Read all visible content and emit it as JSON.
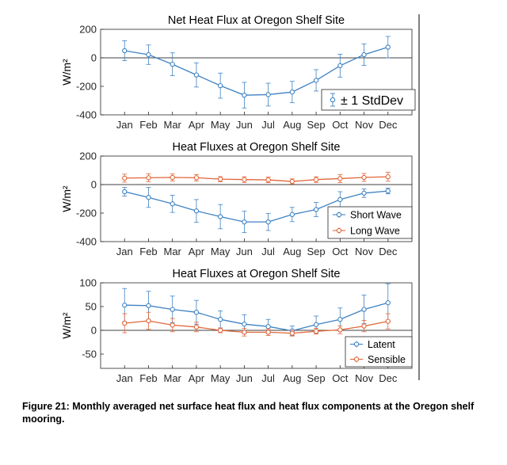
{
  "chart_data": [
    {
      "type": "line",
      "title": "Net Heat Flux at Oregon Shelf Site",
      "ylabel": "W/m²",
      "ylim": [
        -400,
        200
      ],
      "yticks": [
        200,
        0,
        -200,
        -400
      ],
      "categories": [
        "Jan",
        "Feb",
        "Mar",
        "Apr",
        "May",
        "Jun",
        "Jul",
        "Aug",
        "Sep",
        "Oct",
        "Nov",
        "Dec"
      ],
      "grid": false,
      "legend_position": "bottom-right",
      "series": [
        {
          "name": "± 1 StdDev",
          "color": "#3f82c3",
          "values": [
            50,
            22,
            -45,
            -120,
            -195,
            -262,
            -258,
            -240,
            -158,
            -55,
            22,
            75
          ],
          "errors": [
            70,
            68,
            80,
            85,
            88,
            90,
            80,
            75,
            75,
            80,
            75,
            75
          ]
        }
      ]
    },
    {
      "type": "line",
      "title": "Heat Fluxes at Oregon Shelf Site",
      "ylabel": "W/m²",
      "ylim": [
        -400,
        200
      ],
      "yticks": [
        200,
        0,
        -200,
        -400
      ],
      "categories": [
        "Jan",
        "Feb",
        "Mar",
        "Apr",
        "May",
        "Jun",
        "Jul",
        "Aug",
        "Sep",
        "Oct",
        "Nov",
        "Dec"
      ],
      "grid": false,
      "legend_position": "bottom-right",
      "series": [
        {
          "name": "Short Wave",
          "color": "#3f82c3",
          "values": [
            -50,
            -90,
            -135,
            -185,
            -225,
            -262,
            -262,
            -210,
            -175,
            -105,
            -60,
            -45
          ],
          "errors": [
            30,
            70,
            60,
            80,
            85,
            75,
            60,
            50,
            50,
            55,
            30,
            20
          ]
        },
        {
          "name": "Long Wave",
          "color": "#e0673a",
          "values": [
            45,
            48,
            50,
            48,
            38,
            35,
            33,
            22,
            35,
            42,
            50,
            55
          ],
          "errors": [
            28,
            28,
            25,
            22,
            18,
            20,
            20,
            18,
            20,
            28,
            28,
            32
          ]
        }
      ]
    },
    {
      "type": "line",
      "title": "Heat Fluxes at Oregon Shelf Site",
      "ylabel": "W/m²",
      "ylim": [
        -80,
        100
      ],
      "yticks": [
        100,
        50,
        0,
        -50
      ],
      "categories": [
        "Jan",
        "Feb",
        "Mar",
        "Apr",
        "May",
        "Jun",
        "Jul",
        "Aug",
        "Sep",
        "Oct",
        "Nov",
        "Dec"
      ],
      "grid": false,
      "legend_position": "bottom-right",
      "series": [
        {
          "name": "Latent",
          "color": "#3f82c3",
          "values": [
            53,
            52,
            44,
            38,
            23,
            13,
            8,
            -1,
            12,
            23,
            44,
            58
          ],
          "errors": [
            35,
            30,
            28,
            25,
            18,
            20,
            15,
            10,
            18,
            24,
            30,
            40
          ]
        },
        {
          "name": "Sensible",
          "color": "#e0673a",
          "values": [
            15,
            20,
            11,
            7,
            0,
            -4,
            -4,
            -6,
            -2,
            1,
            9,
            19
          ],
          "errors": [
            20,
            18,
            14,
            10,
            5,
            8,
            7,
            6,
            6,
            8,
            12,
            16
          ]
        }
      ]
    }
  ],
  "caption": "Figure 21: Monthly averaged net surface heat flux and heat flux components at the Oregon shelf mooring."
}
